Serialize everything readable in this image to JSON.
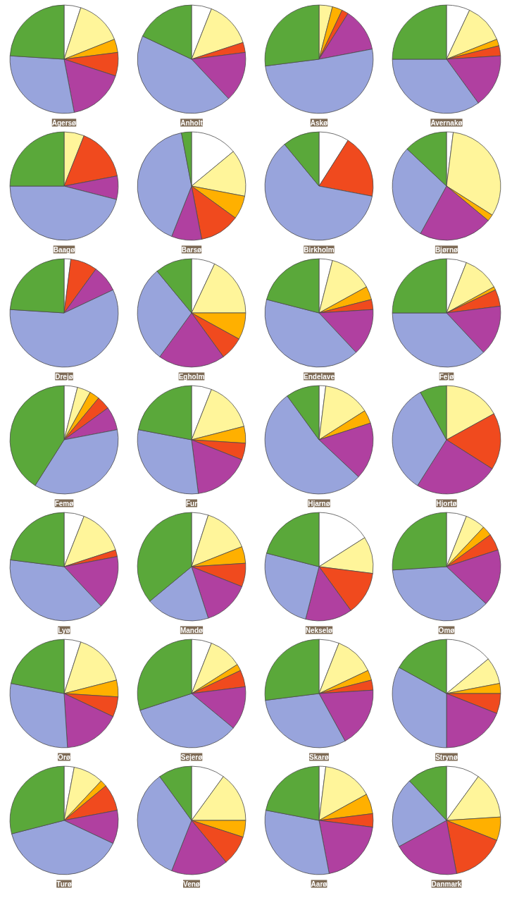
{
  "chart_data": [
    {
      "type": "pie",
      "title": "Agersø",
      "categories": [
        null,
        null,
        null,
        null,
        null,
        null,
        null
      ],
      "values": [
        5,
        14,
        4,
        7,
        17,
        29,
        24
      ],
      "colors": [
        "#ffffff",
        "#fff59a",
        "#ffb000",
        "#f04a1e",
        "#b040a0",
        "#98a4dc",
        "#5aa83a"
      ]
    },
    {
      "type": "pie",
      "title": "Anholt",
      "categories": [
        null,
        null,
        null,
        null,
        null,
        null,
        null
      ],
      "values": [
        6,
        14,
        0,
        3,
        15,
        44,
        18
      ],
      "colors": [
        "#ffffff",
        "#fff59a",
        "#ffb000",
        "#f04a1e",
        "#b040a0",
        "#98a4dc",
        "#5aa83a"
      ]
    },
    {
      "type": "pie",
      "title": "Askø",
      "categories": [
        null,
        null,
        null,
        null,
        null,
        null,
        null
      ],
      "values": [
        0,
        4,
        3,
        2,
        13,
        51,
        27
      ],
      "colors": [
        "#ffffff",
        "#fff59a",
        "#ffb000",
        "#f04a1e",
        "#b040a0",
        "#98a4dc",
        "#5aa83a"
      ]
    },
    {
      "type": "pie",
      "title": "Avernakø",
      "categories": [
        null,
        null,
        null,
        null,
        null,
        null,
        null
      ],
      "values": [
        7,
        12,
        2,
        3,
        16,
        35,
        25
      ],
      "colors": [
        "#ffffff",
        "#fff59a",
        "#ffb000",
        "#f04a1e",
        "#b040a0",
        "#98a4dc",
        "#5aa83a"
      ]
    },
    {
      "type": "pie",
      "title": "Baagø",
      "categories": [
        null,
        null,
        null,
        null,
        null,
        null,
        null
      ],
      "values": [
        0,
        6,
        0,
        16,
        7,
        46,
        25
      ],
      "colors": [
        "#ffffff",
        "#fff59a",
        "#ffb000",
        "#f04a1e",
        "#b040a0",
        "#98a4dc",
        "#5aa83a"
      ]
    },
    {
      "type": "pie",
      "title": "Barsø",
      "categories": [
        null,
        null,
        null,
        null,
        null,
        null,
        null
      ],
      "values": [
        14,
        14,
        7,
        12,
        9,
        41,
        3
      ],
      "colors": [
        "#ffffff",
        "#fff59a",
        "#ffb000",
        "#f04a1e",
        "#b040a0",
        "#98a4dc",
        "#5aa83a"
      ]
    },
    {
      "type": "pie",
      "title": "Birkholm",
      "categories": [
        null,
        null,
        null,
        null,
        null,
        null,
        null
      ],
      "values": [
        9,
        0,
        0,
        19,
        0,
        61,
        11
      ],
      "colors": [
        "#ffffff",
        "#fff59a",
        "#ffb000",
        "#f04a1e",
        "#b040a0",
        "#98a4dc",
        "#5aa83a"
      ]
    },
    {
      "type": "pie",
      "title": "Bjørnø",
      "categories": [
        null,
        null,
        null,
        null,
        null,
        null,
        null
      ],
      "values": [
        2,
        32,
        2,
        0,
        22,
        29,
        13
      ],
      "colors": [
        "#ffffff",
        "#fff59a",
        "#ffb000",
        "#f04a1e",
        "#b040a0",
        "#98a4dc",
        "#5aa83a"
      ]
    },
    {
      "type": "pie",
      "title": "Drejø",
      "categories": [
        null,
        null,
        null,
        null,
        null,
        null,
        null
      ],
      "values": [
        2,
        0,
        0,
        8,
        8,
        58,
        24
      ],
      "colors": [
        "#ffffff",
        "#fff59a",
        "#ffb000",
        "#f04a1e",
        "#b040a0",
        "#98a4dc",
        "#5aa83a"
      ]
    },
    {
      "type": "pie",
      "title": "Egholm",
      "categories": [
        null,
        null,
        null,
        null,
        null,
        null,
        null
      ],
      "values": [
        7,
        18,
        8,
        7,
        20,
        29,
        11
      ],
      "colors": [
        "#ffffff",
        "#fff59a",
        "#ffb000",
        "#f04a1e",
        "#b040a0",
        "#98a4dc",
        "#5aa83a"
      ]
    },
    {
      "type": "pie",
      "title": "Endelave",
      "categories": [
        null,
        null,
        null,
        null,
        null,
        null,
        null
      ],
      "values": [
        4,
        13,
        4,
        3,
        14,
        41,
        21
      ],
      "colors": [
        "#ffffff",
        "#fff59a",
        "#ffb000",
        "#f04a1e",
        "#b040a0",
        "#98a4dc",
        "#5aa83a"
      ]
    },
    {
      "type": "pie",
      "title": "Fejø",
      "categories": [
        null,
        null,
        null,
        null,
        null,
        null,
        null
      ],
      "values": [
        6,
        11,
        1,
        5,
        15,
        37,
        25
      ],
      "colors": [
        "#ffffff",
        "#fff59a",
        "#ffb000",
        "#f04a1e",
        "#b040a0",
        "#98a4dc",
        "#5aa83a"
      ]
    },
    {
      "type": "pie",
      "title": "Femø",
      "categories": [
        null,
        null,
        null,
        null,
        null,
        null,
        null
      ],
      "values": [
        4,
        4,
        3,
        4,
        7,
        37,
        41
      ],
      "colors": [
        "#ffffff",
        "#fff59a",
        "#ffb000",
        "#f04a1e",
        "#b040a0",
        "#98a4dc",
        "#5aa83a"
      ]
    },
    {
      "type": "pie",
      "title": "Fur",
      "categories": [
        null,
        null,
        null,
        null,
        null,
        null,
        null
      ],
      "values": [
        6,
        15,
        5,
        5,
        17,
        30,
        22
      ],
      "colors": [
        "#ffffff",
        "#fff59a",
        "#ffb000",
        "#f04a1e",
        "#b040a0",
        "#98a4dc",
        "#5aa83a"
      ]
    },
    {
      "type": "pie",
      "title": "Hjarnø",
      "categories": [
        null,
        null,
        null,
        null,
        null,
        null,
        null
      ],
      "values": [
        2,
        14,
        4,
        0,
        17,
        53,
        10
      ],
      "colors": [
        "#ffffff",
        "#fff59a",
        "#ffb000",
        "#f04a1e",
        "#b040a0",
        "#98a4dc",
        "#5aa83a"
      ]
    },
    {
      "type": "pie",
      "title": "Hjortø",
      "categories": [
        null,
        null,
        null,
        null,
        null,
        null,
        null
      ],
      "values": [
        0,
        17,
        0,
        17,
        25,
        33,
        8
      ],
      "colors": [
        "#ffffff",
        "#fff59a",
        "#ffb000",
        "#f04a1e",
        "#b040a0",
        "#98a4dc",
        "#5aa83a"
      ]
    },
    {
      "type": "pie",
      "title": "Lyø",
      "categories": [
        null,
        null,
        null,
        null,
        null,
        null,
        null
      ],
      "values": [
        6,
        14,
        0,
        2,
        16,
        39,
        23
      ],
      "colors": [
        "#ffffff",
        "#fff59a",
        "#ffb000",
        "#f04a1e",
        "#b040a0",
        "#98a4dc",
        "#5aa83a"
      ]
    },
    {
      "type": "pie",
      "title": "Mandø",
      "categories": [
        null,
        null,
        null,
        null,
        null,
        null,
        null
      ],
      "values": [
        5,
        14,
        5,
        7,
        14,
        19,
        36
      ],
      "colors": [
        "#ffffff",
        "#fff59a",
        "#ffb000",
        "#f04a1e",
        "#b040a0",
        "#98a4dc",
        "#5aa83a"
      ]
    },
    {
      "type": "pie",
      "title": "Nekselø",
      "categories": [
        null,
        null,
        null,
        null,
        null,
        null,
        null
      ],
      "values": [
        16,
        11,
        0,
        13,
        14,
        25,
        21
      ],
      "colors": [
        "#ffffff",
        "#fff59a",
        "#ffb000",
        "#f04a1e",
        "#b040a0",
        "#98a4dc",
        "#5aa83a"
      ]
    },
    {
      "type": "pie",
      "title": "Omø",
      "categories": [
        null,
        null,
        null,
        null,
        null,
        null,
        null
      ],
      "values": [
        6,
        6,
        3,
        5,
        17,
        37,
        26
      ],
      "colors": [
        "#ffffff",
        "#fff59a",
        "#ffb000",
        "#f04a1e",
        "#b040a0",
        "#98a4dc",
        "#5aa83a"
      ]
    },
    {
      "type": "pie",
      "title": "Orø",
      "categories": [
        null,
        null,
        null,
        null,
        null,
        null,
        null
      ],
      "values": [
        5,
        16,
        5,
        6,
        17,
        29,
        22
      ],
      "colors": [
        "#ffffff",
        "#fff59a",
        "#ffb000",
        "#f04a1e",
        "#b040a0",
        "#98a4dc",
        "#5aa83a"
      ]
    },
    {
      "type": "pie",
      "title": "Sejerø",
      "categories": [
        null,
        null,
        null,
        null,
        null,
        null,
        null
      ],
      "values": [
        6,
        10,
        2,
        5,
        13,
        34,
        30
      ],
      "colors": [
        "#ffffff",
        "#fff59a",
        "#ffb000",
        "#f04a1e",
        "#b040a0",
        "#98a4dc",
        "#5aa83a"
      ]
    },
    {
      "type": "pie",
      "title": "Skarø",
      "categories": [
        null,
        null,
        null,
        null,
        null,
        null,
        null
      ],
      "values": [
        6,
        12,
        3,
        3,
        18,
        31,
        27
      ],
      "colors": [
        "#ffffff",
        "#fff59a",
        "#ffb000",
        "#f04a1e",
        "#b040a0",
        "#98a4dc",
        "#5aa83a"
      ]
    },
    {
      "type": "pie",
      "title": "Strynø",
      "categories": [
        null,
        null,
        null,
        null,
        null,
        null,
        null
      ],
      "values": [
        14,
        8,
        3,
        6,
        19,
        33,
        17
      ],
      "colors": [
        "#ffffff",
        "#fff59a",
        "#ffb000",
        "#f04a1e",
        "#b040a0",
        "#98a4dc",
        "#5aa83a"
      ]
    },
    {
      "type": "pie",
      "title": "Turø",
      "categories": [
        null,
        null,
        null,
        null,
        null,
        null,
        null
      ],
      "values": [
        3,
        9,
        2,
        8,
        10,
        39,
        29
      ],
      "colors": [
        "#ffffff",
        "#fff59a",
        "#ffb000",
        "#f04a1e",
        "#b040a0",
        "#98a4dc",
        "#5aa83a"
      ]
    },
    {
      "type": "pie",
      "title": "Venø",
      "categories": [
        null,
        null,
        null,
        null,
        null,
        null,
        null
      ],
      "values": [
        10,
        15,
        5,
        9,
        17,
        34,
        10
      ],
      "colors": [
        "#ffffff",
        "#fff59a",
        "#ffb000",
        "#f04a1e",
        "#b040a0",
        "#98a4dc",
        "#5aa83a"
      ]
    },
    {
      "type": "pie",
      "title": "Aarø",
      "categories": [
        null,
        null,
        null,
        null,
        null,
        null,
        null
      ],
      "values": [
        2,
        15,
        6,
        4,
        20,
        31,
        22
      ],
      "colors": [
        "#ffffff",
        "#fff59a",
        "#ffb000",
        "#f04a1e",
        "#b040a0",
        "#98a4dc",
        "#5aa83a"
      ]
    },
    {
      "type": "pie",
      "title": "Danmark",
      "categories": [
        null,
        null,
        null,
        null,
        null,
        null,
        null
      ],
      "values": [
        10,
        14,
        7,
        16,
        20,
        21,
        12
      ],
      "colors": [
        "#ffffff",
        "#fff59a",
        "#ffb000",
        "#f04a1e",
        "#b040a0",
        "#98a4dc",
        "#5aa83a"
      ]
    }
  ]
}
